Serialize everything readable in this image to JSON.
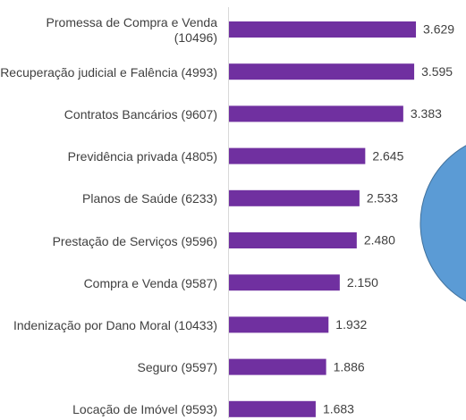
{
  "chart_data": {
    "type": "bar",
    "orientation": "horizontal",
    "color": "#7030a0",
    "categories": [
      "Promessa de Compra e Venda (10496)",
      "Recuperação judicial e Falência (4993)",
      "Contratos Bancários (9607)",
      "Previdência privada (4805)",
      "Planos de Saúde (6233)",
      "Prestação de Serviços (9596)",
      "Compra e Venda (9587)",
      "Indenização por Dano Moral (10433)",
      "Seguro (9597)",
      "Locação de Imóvel (9593)"
    ],
    "values": [
      3.629,
      3.595,
      3.383,
      2.645,
      2.533,
      2.48,
      2.15,
      1.932,
      1.886,
      1.683
    ],
    "value_labels": [
      "3.629",
      "3.595",
      "3.383",
      "2.645",
      "2.533",
      "2.480",
      "2.150",
      "1.932",
      "1.886",
      "1.683"
    ]
  }
}
